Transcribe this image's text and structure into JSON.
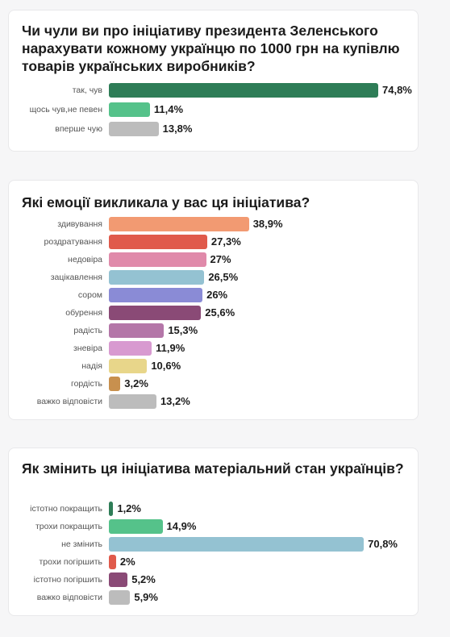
{
  "cards": [
    {
      "title": "Чи чули ви про ініціативу президента Зеленського нарахувати кожному українцю по 1000 грн на купівлю товарів українських виробників?"
    },
    {
      "title": "Які емоції викликала у вас ця ініціатива?"
    },
    {
      "title": "Як змінить ця ініціатива матеріальний стан українців?"
    }
  ],
  "chart_data": [
    {
      "type": "bar",
      "orientation": "horizontal",
      "title": "Чи чули ви про ініціативу президента Зеленського нарахувати кожному українцю по 1000 грн на купівлю товарів українських виробників?",
      "categories": [
        "так, чув",
        "щось чув, не певен",
        "вперше чую"
      ],
      "category_lines": [
        [
          "так, чув"
        ],
        [
          "щось чув,",
          "не певен"
        ],
        [
          "вперше чую"
        ]
      ],
      "values": [
        74.8,
        11.4,
        13.8
      ],
      "labels": [
        "74,8%",
        "11,4%",
        "13,8%"
      ],
      "colors": [
        "#2e7d57",
        "#55c28a",
        "#bcbcbc"
      ],
      "unit": "%",
      "grid": false
    },
    {
      "type": "bar",
      "orientation": "horizontal",
      "title": "Які емоції викликала у вас ця ініціатива?",
      "categories": [
        "здивування",
        "роздратування",
        "недовіра",
        "зацікавлення",
        "сором",
        "обурення",
        "радість",
        "зневіра",
        "надія",
        "гордість",
        "важко відповісти"
      ],
      "category_lines": [
        [
          "здивування"
        ],
        [
          "роздратування"
        ],
        [
          "недовіра"
        ],
        [
          "зацікавлення"
        ],
        [
          "сором"
        ],
        [
          "обурення"
        ],
        [
          "радість"
        ],
        [
          "зневіра"
        ],
        [
          "надія"
        ],
        [
          "гордість"
        ],
        [
          "важко відповісти"
        ]
      ],
      "values": [
        38.9,
        27.3,
        27,
        26.5,
        26,
        25.6,
        15.3,
        11.9,
        10.6,
        3.2,
        13.2
      ],
      "labels": [
        "38,9%",
        "27,3%",
        "27%",
        "26,5%",
        "26%",
        "25,6%",
        "15,3%",
        "11,9%",
        "10,6%",
        "3,2%",
        "13,2%"
      ],
      "colors": [
        "#f29a72",
        "#e05a4b",
        "#e08aaa",
        "#94c2d2",
        "#8a8bd6",
        "#8a4a76",
        "#b476a8",
        "#d89ad0",
        "#e8d68a",
        "#c8904e",
        "#bcbcbc"
      ],
      "unit": "%",
      "grid": false
    },
    {
      "type": "bar",
      "orientation": "horizontal",
      "title": "Як змінить ця ініціатива матеріальний стан українців?",
      "categories": [
        "істотно покращить",
        "трохи покращить",
        "не змінить",
        "трохи погіршить",
        "істотно погіршить",
        "важко відповісти"
      ],
      "category_lines": [
        [
          "істотно покращить"
        ],
        [
          "трохи покращить"
        ],
        [
          "не змінить"
        ],
        [
          "трохи погіршить"
        ],
        [
          "істотно погіршить"
        ],
        [
          "важко відповісти"
        ]
      ],
      "values": [
        1.2,
        14.9,
        70.8,
        2,
        5.2,
        5.9
      ],
      "labels": [
        "1,2%",
        "14,9%",
        "70,8%",
        "2%",
        "5,2%",
        "5,9%"
      ],
      "colors": [
        "#2e7d57",
        "#55c28a",
        "#94c2d2",
        "#e05a4b",
        "#8a4a76",
        "#bcbcbc"
      ],
      "unit": "%",
      "grid": false
    }
  ]
}
